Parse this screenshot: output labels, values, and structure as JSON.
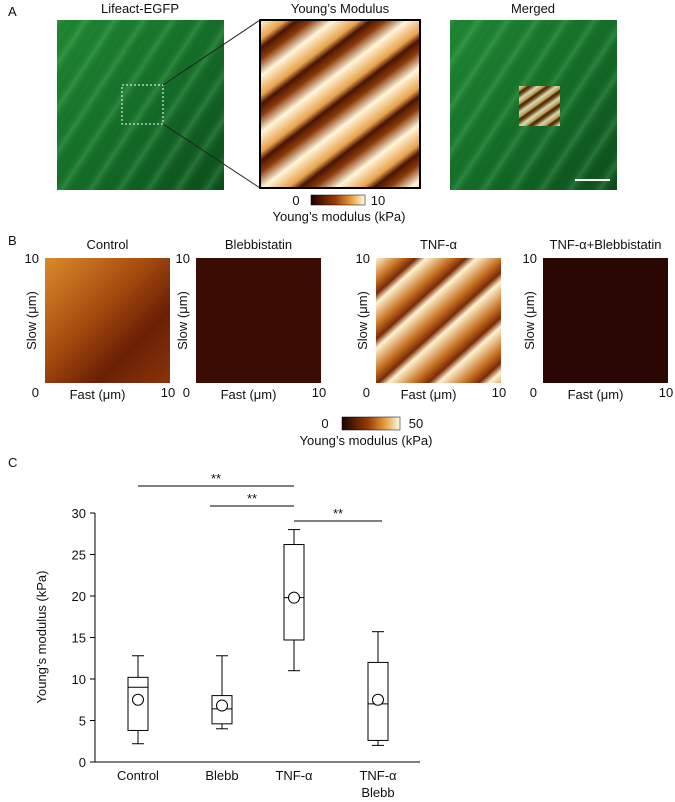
{
  "panel_labels": [
    "A",
    "B",
    "C"
  ],
  "panel_a": {
    "titles": [
      "Lifeact-EGFP",
      "Young’s Modulus",
      "Merged"
    ],
    "colorbar": {
      "min": "0",
      "max": "10",
      "label": "Young’s modulus (kPa)"
    }
  },
  "panel_b": {
    "titles": [
      "Control",
      "Blebbistatin",
      "TNF-α",
      "TNF-α+Blebbistatin"
    ],
    "axis": {
      "y_max": "10",
      "y_min": "0",
      "x_max": "10",
      "x_label": "Fast (μm)",
      "y_label": "Slow (μm)"
    },
    "colorbar": {
      "min": "0",
      "max": "50",
      "label": "Young’s modulus (kPa)"
    }
  },
  "chart_data": {
    "type": "box",
    "ylabel": "Young’s modulus (kPa)",
    "categories": [
      "Control",
      "Blebb",
      "TNF-α",
      "TNF-α\nBlebb"
    ],
    "whisker_low": [
      2.2,
      4,
      11,
      2
    ],
    "q1": [
      3.8,
      4.6,
      14.7,
      2.6
    ],
    "median": [
      9,
      6.4,
      19.8,
      7
    ],
    "q3": [
      10.2,
      8,
      26.2,
      12
    ],
    "whisker_high": [
      12.8,
      12.8,
      28,
      15.7
    ],
    "mean": [
      7.5,
      6.8,
      19.8,
      7.5
    ],
    "ylim": [
      0,
      30
    ],
    "yticks": [
      0,
      5,
      10,
      15,
      20,
      25,
      30
    ],
    "significance": [
      {
        "from": 0,
        "to": 2,
        "label": "**"
      },
      {
        "from": 1,
        "to": 2,
        "label": "**"
      },
      {
        "from": 2,
        "to": 3,
        "label": "**"
      }
    ]
  }
}
